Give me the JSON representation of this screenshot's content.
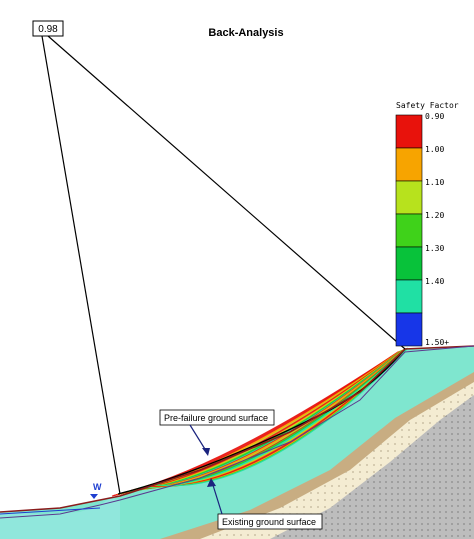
{
  "title": "Back-Analysis",
  "min_fs_label": "0.98",
  "water_label": "W",
  "legend": {
    "title": "Safety Factor",
    "bands": [
      {
        "label": "0.90",
        "color": "#e8120c"
      },
      {
        "label": "1.00",
        "color": "#f7a400"
      },
      {
        "label": "1.10",
        "color": "#b7e21d"
      },
      {
        "label": "1.20",
        "color": "#3fd21a"
      },
      {
        "label": "1.30",
        "color": "#08c23a"
      },
      {
        "label": "1.40",
        "color": "#20e0a4"
      },
      {
        "label": "1.50+",
        "color": "#1736e8"
      }
    ]
  },
  "callouts": {
    "pre_failure": "Pre-failure ground surface",
    "existing": "Existing ground surface"
  },
  "colors": {
    "material_upper": "#7fe6cf",
    "material_mid": "#c8ad82",
    "material_sand": "#f4ecd2",
    "bedrock": "#bdbdbd",
    "slip_surface_min": "#000000",
    "ground_outline": "#8a1c1c"
  }
}
